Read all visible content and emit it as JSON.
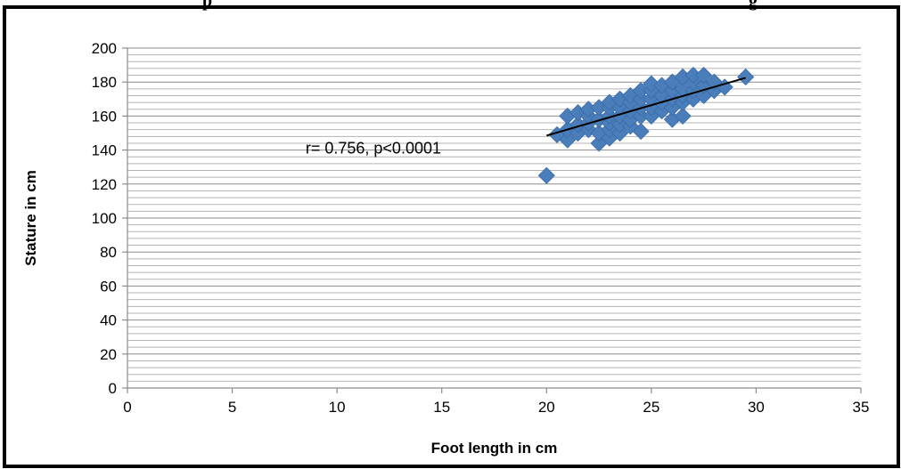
{
  "chart_data": {
    "type": "scatter",
    "title": "",
    "title_fragment": "...p... ...g...",
    "xlabel": "Foot length in cm",
    "ylabel": "Stature in cm",
    "xlim": [
      0,
      35
    ],
    "ylim": [
      0,
      200
    ],
    "x_ticks": [
      0,
      5,
      10,
      15,
      20,
      25,
      30,
      35
    ],
    "y_ticks": [
      0,
      20,
      40,
      60,
      80,
      100,
      120,
      140,
      160,
      180,
      200
    ],
    "grid": true,
    "minor_grid_step": 4,
    "marker": "diamond",
    "marker_color": "#4a7ebb",
    "line_color": "#000000",
    "annotation": {
      "text": "r= 0.756, p<0.0001",
      "x": 8.5,
      "y": 138
    },
    "trendline": {
      "x": [
        20,
        29.5
      ],
      "y": [
        148.5,
        182.5
      ]
    },
    "points": [
      [
        20,
        125
      ],
      [
        20.5,
        149
      ],
      [
        21,
        146
      ],
      [
        21,
        152
      ],
      [
        21,
        160
      ],
      [
        21.5,
        150
      ],
      [
        21.5,
        155
      ],
      [
        21.5,
        162
      ],
      [
        22,
        152
      ],
      [
        22,
        156
      ],
      [
        22,
        160
      ],
      [
        22,
        164
      ],
      [
        22.5,
        144
      ],
      [
        22.5,
        150
      ],
      [
        22.5,
        158
      ],
      [
        22.5,
        165
      ],
      [
        23,
        147
      ],
      [
        23,
        152
      ],
      [
        23,
        156
      ],
      [
        23,
        160
      ],
      [
        23,
        165
      ],
      [
        23,
        168
      ],
      [
        23.5,
        150
      ],
      [
        23.5,
        155
      ],
      [
        23.5,
        160
      ],
      [
        23.5,
        165
      ],
      [
        23.5,
        170
      ],
      [
        24,
        154
      ],
      [
        24,
        158
      ],
      [
        24,
        163
      ],
      [
        24,
        168
      ],
      [
        24,
        172
      ],
      [
        24.5,
        151
      ],
      [
        24.5,
        160
      ],
      [
        24.5,
        165
      ],
      [
        24.5,
        170
      ],
      [
        24.5,
        175
      ],
      [
        25,
        160
      ],
      [
        25,
        165
      ],
      [
        25,
        170
      ],
      [
        25,
        175
      ],
      [
        25,
        179
      ],
      [
        25.5,
        163
      ],
      [
        25.5,
        168
      ],
      [
        25.5,
        172
      ],
      [
        25.5,
        178
      ],
      [
        26,
        158
      ],
      [
        26,
        165
      ],
      [
        26,
        170
      ],
      [
        26,
        175
      ],
      [
        26,
        180
      ],
      [
        26.5,
        160
      ],
      [
        26.5,
        168
      ],
      [
        26.5,
        172
      ],
      [
        26.5,
        176
      ],
      [
        26.5,
        183
      ],
      [
        27,
        170
      ],
      [
        27,
        175
      ],
      [
        27,
        180
      ],
      [
        27,
        184
      ],
      [
        27.5,
        172
      ],
      [
        27.5,
        178
      ],
      [
        27.5,
        184
      ],
      [
        28,
        175
      ],
      [
        28,
        180
      ],
      [
        28.5,
        177
      ],
      [
        29.5,
        183
      ]
    ]
  }
}
